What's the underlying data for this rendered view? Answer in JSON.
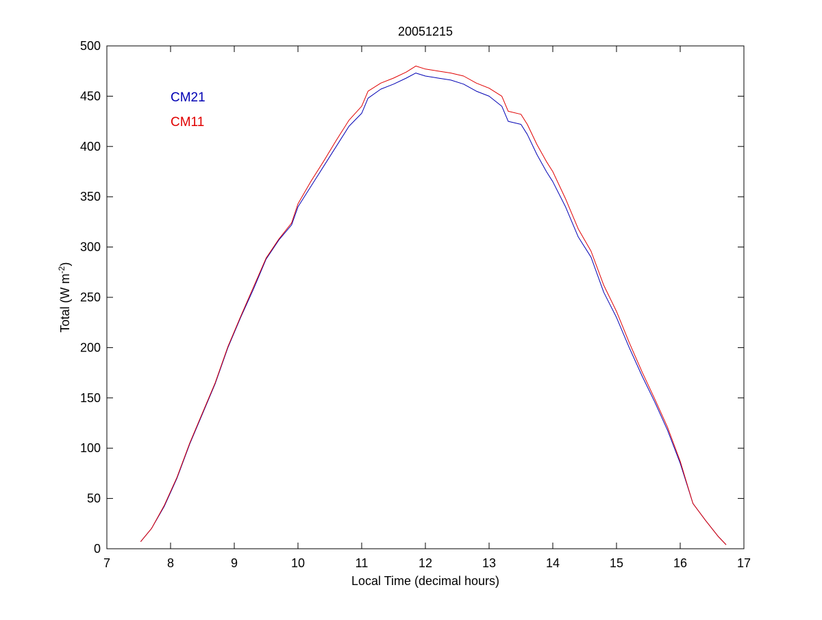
{
  "chart_data": {
    "type": "line",
    "title": "20051215",
    "xlabel": "Local Time (decimal hours)",
    "ylabel": {
      "prefix": "Total (W m",
      "superscript": "-2",
      "suffix": ")"
    },
    "xlim": [
      7,
      17
    ],
    "ylim": [
      0,
      500
    ],
    "xticks": [
      7,
      8,
      9,
      10,
      11,
      12,
      13,
      14,
      15,
      16,
      17
    ],
    "yticks": [
      0,
      50,
      100,
      150,
      200,
      250,
      300,
      350,
      400,
      450,
      500
    ],
    "grid": false,
    "legend_position": "top-left",
    "series": [
      {
        "name": "CM21",
        "color": "#0000b4",
        "points": [
          [
            7.53,
            7
          ],
          [
            7.7,
            20
          ],
          [
            7.9,
            42
          ],
          [
            8.1,
            70
          ],
          [
            8.3,
            104
          ],
          [
            8.5,
            134
          ],
          [
            8.7,
            164
          ],
          [
            8.9,
            200
          ],
          [
            9.1,
            230
          ],
          [
            9.3,
            258
          ],
          [
            9.5,
            288
          ],
          [
            9.7,
            307
          ],
          [
            9.9,
            322
          ],
          [
            10.0,
            340
          ],
          [
            10.2,
            360
          ],
          [
            10.4,
            380
          ],
          [
            10.6,
            400
          ],
          [
            10.8,
            420
          ],
          [
            11.0,
            433
          ],
          [
            11.1,
            448
          ],
          [
            11.3,
            457
          ],
          [
            11.5,
            462
          ],
          [
            11.7,
            468
          ],
          [
            11.85,
            473
          ],
          [
            12.0,
            470
          ],
          [
            12.2,
            468
          ],
          [
            12.4,
            466
          ],
          [
            12.6,
            462
          ],
          [
            12.8,
            455
          ],
          [
            13.0,
            450
          ],
          [
            13.2,
            440
          ],
          [
            13.3,
            425
          ],
          [
            13.5,
            422
          ],
          [
            13.6,
            412
          ],
          [
            13.75,
            392
          ],
          [
            13.9,
            375
          ],
          [
            14.0,
            365
          ],
          [
            14.2,
            340
          ],
          [
            14.4,
            310
          ],
          [
            14.6,
            290
          ],
          [
            14.8,
            255
          ],
          [
            15.0,
            230
          ],
          [
            15.2,
            200
          ],
          [
            15.4,
            172
          ],
          [
            15.6,
            146
          ],
          [
            15.8,
            118
          ],
          [
            16.0,
            85
          ],
          [
            16.2,
            45
          ],
          [
            16.4,
            28
          ],
          [
            16.6,
            12
          ],
          [
            16.72,
            4
          ]
        ]
      },
      {
        "name": "CM11",
        "color": "#e00000",
        "points": [
          [
            7.53,
            7
          ],
          [
            7.7,
            20
          ],
          [
            7.9,
            43
          ],
          [
            8.1,
            71
          ],
          [
            8.3,
            105
          ],
          [
            8.5,
            135
          ],
          [
            8.7,
            165
          ],
          [
            8.9,
            201
          ],
          [
            9.1,
            231
          ],
          [
            9.3,
            260
          ],
          [
            9.5,
            289
          ],
          [
            9.7,
            308
          ],
          [
            9.9,
            324
          ],
          [
            10.0,
            343
          ],
          [
            10.2,
            365
          ],
          [
            10.4,
            385
          ],
          [
            10.6,
            406
          ],
          [
            10.8,
            426
          ],
          [
            11.0,
            440
          ],
          [
            11.1,
            455
          ],
          [
            11.3,
            463
          ],
          [
            11.5,
            468
          ],
          [
            11.7,
            474
          ],
          [
            11.85,
            480
          ],
          [
            12.0,
            477
          ],
          [
            12.2,
            475
          ],
          [
            12.4,
            473
          ],
          [
            12.6,
            470
          ],
          [
            12.8,
            463
          ],
          [
            13.0,
            458
          ],
          [
            13.2,
            450
          ],
          [
            13.3,
            435
          ],
          [
            13.5,
            432
          ],
          [
            13.6,
            422
          ],
          [
            13.75,
            402
          ],
          [
            13.9,
            385
          ],
          [
            14.0,
            375
          ],
          [
            14.2,
            348
          ],
          [
            14.4,
            318
          ],
          [
            14.6,
            296
          ],
          [
            14.8,
            262
          ],
          [
            15.0,
            236
          ],
          [
            15.2,
            205
          ],
          [
            15.4,
            176
          ],
          [
            15.6,
            149
          ],
          [
            15.8,
            121
          ],
          [
            16.0,
            87
          ],
          [
            16.2,
            45
          ],
          [
            16.4,
            28
          ],
          [
            16.6,
            12
          ],
          [
            16.72,
            4
          ]
        ]
      }
    ]
  }
}
